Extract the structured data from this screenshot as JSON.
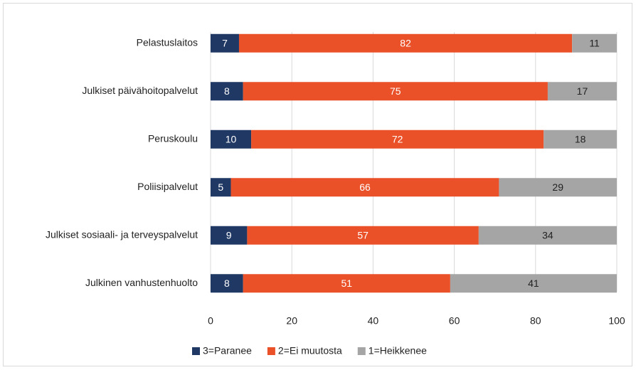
{
  "chart_data": {
    "type": "stacked_bar",
    "orientation": "horizontal",
    "categories": [
      "Pelastuslaitos",
      "Julkiset päivähoitopalvelut",
      "Peruskoulu",
      "Poliisipalvelut",
      "Julkiset sosiaali- ja terveyspalvelut",
      "Julkinen vanhustenhuolto"
    ],
    "series": [
      {
        "name": "3=Paranee",
        "color": "#203864",
        "values": [
          7,
          8,
          10,
          5,
          9,
          8
        ]
      },
      {
        "name": "2=Ei muutosta",
        "color": "#ea5129",
        "values": [
          82,
          75,
          72,
          66,
          57,
          51
        ]
      },
      {
        "name": "1=Heikkenee",
        "color": "#a5a5a5",
        "values": [
          11,
          17,
          18,
          29,
          34,
          41
        ]
      }
    ],
    "xlim": [
      0,
      100
    ],
    "xticks": [
      0,
      20,
      40,
      60,
      80,
      100
    ],
    "grid": true,
    "legend": "bottom"
  }
}
